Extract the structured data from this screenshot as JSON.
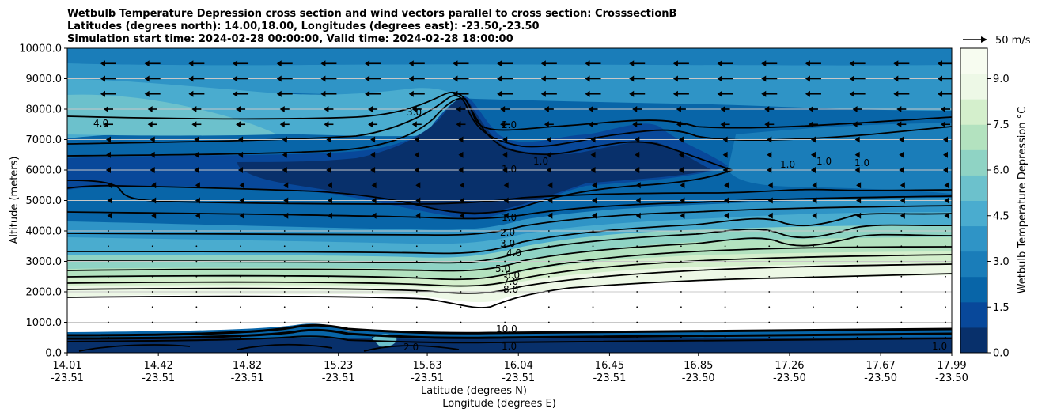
{
  "chart_data": {
    "type": "contour",
    "title_lines": [
      "Wetbulb Temperature Depression cross section and wind vectors parallel to cross section: CrosssectionB",
      "Latitudes (degrees north): 14.00,18.00, Longitudes (degrees east): -23.50,-23.50",
      "Simulation start time: 2024-02-28 00:00:00, Valid time: 2024-02-28 18:00:00"
    ],
    "ylabel": "Altitude (meters)",
    "xlabel_lat": "Latitude (degrees N)",
    "xlabel_lon": "Longitude (degrees E)",
    "ylim": [
      0,
      10000
    ],
    "y_ticks": [
      "0.0",
      "1000.0",
      "2000.0",
      "3000.0",
      "4000.0",
      "5000.0",
      "6000.0",
      "7000.0",
      "8000.0",
      "9000.0",
      "10000.0"
    ],
    "y_tick_values": [
      0,
      1000,
      2000,
      3000,
      4000,
      5000,
      6000,
      7000,
      8000,
      9000,
      10000
    ],
    "xlim": [
      14.01,
      17.99
    ],
    "x_ticks": [
      {
        "lat": "14.01",
        "lon": "-23.51",
        "value": 14.01
      },
      {
        "lat": "14.42",
        "lon": "-23.51",
        "value": 14.42
      },
      {
        "lat": "14.82",
        "lon": "-23.51",
        "value": 14.82
      },
      {
        "lat": "15.23",
        "lon": "-23.51",
        "value": 15.23
      },
      {
        "lat": "15.63",
        "lon": "-23.51",
        "value": 15.63
      },
      {
        "lat": "16.04",
        "lon": "-23.51",
        "value": 16.04
      },
      {
        "lat": "16.45",
        "lon": "-23.51",
        "value": 16.45
      },
      {
        "lat": "16.85",
        "lon": "-23.50",
        "value": 16.85
      },
      {
        "lat": "17.26",
        "lon": "-23.50",
        "value": 17.26
      },
      {
        "lat": "17.67",
        "lon": "-23.50",
        "value": 17.67
      },
      {
        "lat": "17.99",
        "lon": "-23.50",
        "value": 17.99
      }
    ],
    "colorbar": {
      "label": "Wetbulb Temperature Depression °C",
      "range": [
        0,
        10
      ],
      "ticks": [
        "0.0",
        "1.5",
        "3.0",
        "4.5",
        "6.0",
        "7.5",
        "9.0"
      ],
      "tick_values": [
        0,
        1.5,
        3.0,
        4.5,
        6.0,
        7.5,
        9.0
      ],
      "colors": [
        "#08306b",
        "#08489a",
        "#0865a8",
        "#1a7db9",
        "#2f94c6",
        "#4aaccf",
        "#6cc1cc",
        "#8fd3c4",
        "#b3e2bf",
        "#d4efcc",
        "#edf8e6",
        "#f7fcf0"
      ]
    },
    "quiver_key": "50 m/s",
    "contour_labels": [
      "1.0",
      "2.0",
      "3.0",
      "4.0",
      "5.0",
      "6.0",
      "7.0",
      "8.0",
      "10.0"
    ],
    "grid": "horizontal"
  }
}
